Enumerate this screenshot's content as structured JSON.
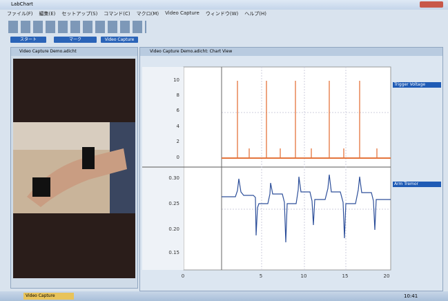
{
  "window": {
    "title": "LabChart"
  },
  "menu": [
    "ファイル(F)",
    "編集(E)",
    "セットアップ(S)",
    "コマンド(C)",
    "マクロ(M)",
    "Video Capture",
    "ウィンドウ(W)",
    "ヘルプ(H)"
  ],
  "toolbar_buttons": [
    "スタート",
    "マーク",
    "Video Capture"
  ],
  "video_window": {
    "title": "Video Capture Demo.adicht"
  },
  "chart_window": {
    "title": "Video Capture Demo.adicht: Chart View",
    "channels": [
      {
        "name": "Trigger Voltage",
        "yticks": [
          "10",
          "8",
          "6",
          "4",
          "2",
          "0"
        ]
      },
      {
        "name": "Arm Tremor",
        "yticks": [
          "0.30",
          "0.25",
          "0.20",
          "0.15"
        ]
      }
    ],
    "xticks": [
      "0",
      "5",
      "10",
      "15",
      "20"
    ]
  },
  "taskbar": {
    "item": "Video Capture",
    "clock": "10:41"
  }
}
